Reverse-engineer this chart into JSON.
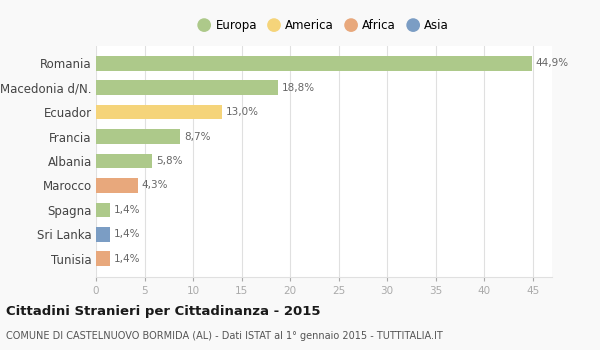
{
  "categories": [
    "Romania",
    "Macedonia d/N.",
    "Ecuador",
    "Francia",
    "Albania",
    "Marocco",
    "Spagna",
    "Sri Lanka",
    "Tunisia"
  ],
  "values": [
    44.9,
    18.8,
    13.0,
    8.7,
    5.8,
    4.3,
    1.4,
    1.4,
    1.4
  ],
  "labels": [
    "44,9%",
    "18,8%",
    "13,0%",
    "8,7%",
    "5,8%",
    "4,3%",
    "1,4%",
    "1,4%",
    "1,4%"
  ],
  "continents": [
    "Europa",
    "Europa",
    "America",
    "Europa",
    "Europa",
    "Africa",
    "Europa",
    "Asia",
    "Africa"
  ],
  "colors": {
    "Europa": "#adc98a",
    "America": "#f5d47a",
    "Africa": "#e8a87c",
    "Asia": "#7b9dc4"
  },
  "legend_order": [
    "Europa",
    "America",
    "Africa",
    "Asia"
  ],
  "xlim": [
    0,
    47
  ],
  "xticks": [
    0,
    5,
    10,
    15,
    20,
    25,
    30,
    35,
    40,
    45
  ],
  "title": "Cittadini Stranieri per Cittadinanza - 2015",
  "subtitle": "COMUNE DI CASTELNUOVO BORMIDA (AL) - Dati ISTAT al 1° gennaio 2015 - TUTTITALIA.IT",
  "bg_color": "#f9f9f9",
  "plot_bg_color": "#ffffff",
  "bar_height": 0.6,
  "grid_color": "#e0e0e0",
  "label_color": "#666666",
  "ytick_color": "#444444",
  "xtick_color": "#aaaaaa"
}
